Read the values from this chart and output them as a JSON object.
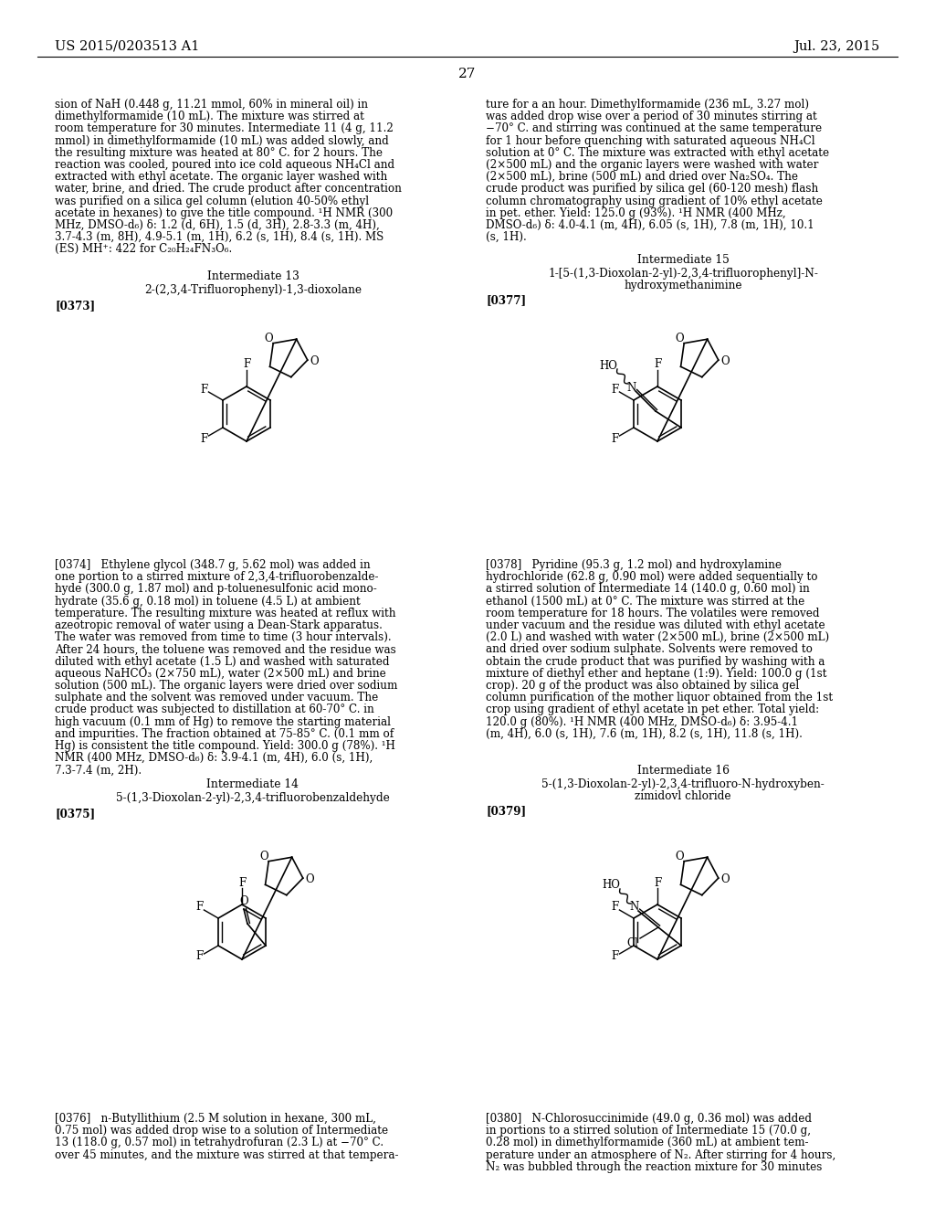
{
  "background_color": "#ffffff",
  "header_left": "US 2015/0203513 A1",
  "header_right": "Jul. 23, 2015",
  "page_number": "27",
  "left_text_block1": "sion of NaH (0.448 g, 11.21 mmol, 60% in mineral oil) in\ndimethylformamide (10 mL). The mixture was stirred at\nroom temperature for 30 minutes. Intermediate 11 (4 g, 11.2\nmmol) in dimethylformamide (10 mL) was added slowly, and\nthe resulting mixture was heated at 80° C. for 2 hours. The\nreaction was cooled, poured into ice cold aqueous NH₄Cl and\nextracted with ethyl acetate. The organic layer washed with\nwater, brine, and dried. The crude product after concentration\nwas purified on a silica gel column (elution 40-50% ethyl\nacetate in hexanes) to give the title compound. ¹H NMR (300\nMHz, DMSO-d₆) δ: 1.2 (d, 6H), 1.5 (d, 3H), 2.8-3.3 (m, 4H),\n3.7-4.3 (m, 8H), 4.9-5.1 (m, 1H), 6.2 (s, 1H), 8.4 (s, 1H). MS\n(ES) MH⁺: 422 for C₂₀H₂₄FN₃O₆.",
  "right_text_block1": "ture for a an hour. Dimethylformamide (236 mL, 3.27 mol)\nwas added drop wise over a period of 30 minutes stirring at\n−70° C. and stirring was continued at the same temperature\nfor 1 hour before quenching with saturated aqueous NH₄Cl\nsolution at 0° C. The mixture was extracted with ethyl acetate\n(2×500 mL) and the organic layers were washed with water\n(2×500 mL), brine (500 mL) and dried over Na₂SO₄. The\ncrude product was purified by silica gel (60-120 mesh) flash\ncolumn chromatography using gradient of 10% ethyl acetate\nin pet. ether. Yield: 125.0 g (93%). ¹H NMR (400 MHz,\nDMSO-d₆) δ: 4.0-4.1 (m, 4H), 6.05 (s, 1H), 7.8 (m, 1H), 10.1\n(s, 1H).",
  "int13_label": "Intermediate 13",
  "int13_name": "2-(2,3,4-Trifluorophenyl)-1,3-dioxolane",
  "int13_tag": "[0373]",
  "int15_label": "Intermediate 15",
  "int15_name_line1": "1-[5-(1,3-Dioxolan-2-yl)-2,3,4-trifluorophenyl]-N-",
  "int15_name_line2": "hydroxymethanimine",
  "int15_tag": "[0377]",
  "left_text_block2": "[0374]   Ethylene glycol (348.7 g, 5.62 mol) was added in\none portion to a stirred mixture of 2,3,4-trifluorobenzalde-\nhyde (300.0 g, 1.87 mol) and p-toluenesulfonic acid mono-\nhydrate (35.6 g, 0.18 mol) in toluene (4.5 L) at ambient\ntemperature. The resulting mixture was heated at reflux with\nazeotropic removal of water using a Dean-Stark apparatus.\nThe water was removed from time to time (3 hour intervals).\nAfter 24 hours, the toluene was removed and the residue was\ndiluted with ethyl acetate (1.5 L) and washed with saturated\naqueous NaHCO₃ (2×750 mL), water (2×500 mL) and brine\nsolution (500 mL). The organic layers were dried over sodium\nsulphate and the solvent was removed under vacuum. The\ncrude product was subjected to distillation at 60-70° C. in\nhigh vacuum (0.1 mm of Hg) to remove the starting material\nand impurities. The fraction obtained at 75-85° C. (0.1 mm of\nHg) is consistent the title compound. Yield: 300.0 g (78%). ¹H\nNMR (400 MHz, DMSO-d₆) δ: 3.9-4.1 (m, 4H), 6.0 (s, 1H),\n7.3-7.4 (m, 2H).",
  "right_text_block2": "[0378]   Pyridine (95.3 g, 1.2 mol) and hydroxylamine\nhydrochloride (62.8 g, 0.90 mol) were added sequentially to\na stirred solution of Intermediate 14 (140.0 g, 0.60 mol) in\nethanol (1500 mL) at 0° C. The mixture was stirred at the\nroom temperature for 18 hours. The volatiles were removed\nunder vacuum and the residue was diluted with ethyl acetate\n(2.0 L) and washed with water (2×500 mL), brine (2×500 mL)\nand dried over sodium sulphate. Solvents were removed to\nobtain the crude product that was purified by washing with a\nmixture of diethyl ether and heptane (1:9). Yield: 100.0 g (1st\ncrop). 20 g of the product was also obtained by silica gel\ncolumn purification of the mother liquor obtained from the 1st\ncrop using gradient of ethyl acetate in pet ether. Total yield:\n120.0 g (80%). ¹H NMR (400 MHz, DMSO-d₆) δ: 3.95-4.1\n(m, 4H), 6.0 (s, 1H), 7.6 (m, 1H), 8.2 (s, 1H), 11.8 (s, 1H).",
  "int14_label": "Intermediate 14",
  "int14_name": "5-(1,3-Dioxolan-2-yl)-2,3,4-trifluorobenzaldehyde",
  "int14_tag": "[0375]",
  "int16_label": "Intermediate 16",
  "int16_name_line1": "5-(1,3-Dioxolan-2-yl)-2,3,4-trifluoro-N-hydroxyben-",
  "int16_name_line2": "zimidovl chloride",
  "int16_tag": "[0379]",
  "left_text_block3": "[0376]   n-Butyllithium (2.5 M solution in hexane, 300 mL,\n0.75 mol) was added drop wise to a solution of Intermediate\n13 (118.0 g, 0.57 mol) in tetrahydrofuran (2.3 L) at −70° C.\nover 45 minutes, and the mixture was stirred at that tempera-",
  "right_text_block3": "[0380]   N-Chlorosuccinimide (49.0 g, 0.36 mol) was added\nin portions to a stirred solution of Intermediate 15 (70.0 g,\n0.28 mol) in dimethylformamide (360 mL) at ambient tem-\nperature under an atmosphere of N₂. After stirring for 4 hours,\nN₂ was bubbled through the reaction mixture for 30 minutes"
}
